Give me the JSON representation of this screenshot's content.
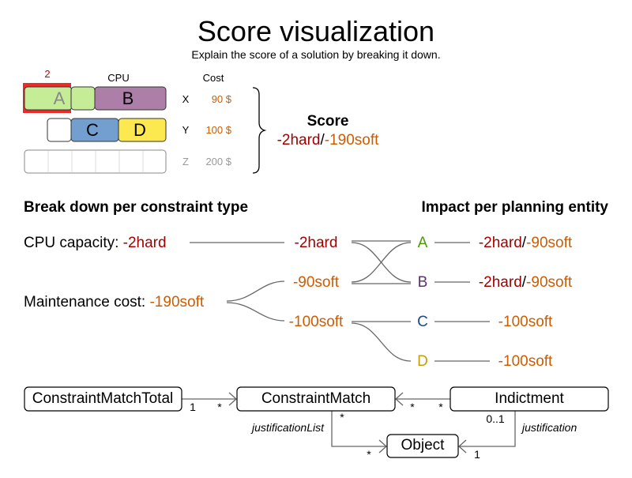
{
  "title": "Score visualization",
  "subtitle": "Explain the score of a solution by breaking it down.",
  "colors": {
    "hard": "#a40000",
    "soft": "#ce5c00",
    "A": "#4e9a06",
    "B": "#5c3566",
    "C": "#204a87",
    "D": "#c4a000",
    "fillA": "#c5ed97",
    "fillB": "#ad7fa8",
    "fillC": "#729fcf",
    "fillD": "#fce94f",
    "overload": "#ef2929"
  },
  "machines": {
    "cpu_label": "CPU",
    "cost_label": "Cost",
    "overload": "2",
    "rows": [
      {
        "name": "X",
        "cost": "90 $"
      },
      {
        "name": "Y",
        "cost": "100 $"
      },
      {
        "name": "Z",
        "cost": "200 $"
      }
    ],
    "entities": [
      "A",
      "B",
      "C",
      "D"
    ]
  },
  "score": {
    "label": "Score",
    "hard": "-2hard",
    "sep": "/",
    "soft": "-190soft"
  },
  "breakdown": {
    "left_heading": "Break down per constraint type",
    "right_heading": "Impact per planning entity",
    "constraints": [
      {
        "name": "CPU capacity: ",
        "score": "-2hard"
      },
      {
        "name": "Maintenance cost: ",
        "score": "-190soft"
      }
    ],
    "matches": [
      "-2hard",
      "-90soft",
      "-100soft"
    ],
    "entities": [
      {
        "name": "A",
        "hard": "-2hard",
        "sep": "/",
        "soft": "-90soft"
      },
      {
        "name": "B",
        "hard": "-2hard",
        "sep": "/",
        "soft": "-90soft"
      },
      {
        "name": "C",
        "soft": "-100soft"
      },
      {
        "name": "D",
        "soft": "-100soft"
      }
    ]
  },
  "uml": {
    "total": "ConstraintMatchTotal",
    "match": "ConstraintMatch",
    "indictment": "Indictment",
    "object": "Object",
    "m_total_1": "1",
    "m_total_star": "*",
    "m_ind_star1": "*",
    "m_ind_star2": "*",
    "m_match_star": "*",
    "m_obj_star": "*",
    "m_ind_01": "0..1",
    "m_obj_1": "1",
    "justification_list": "justificationList",
    "justification": "justification"
  }
}
